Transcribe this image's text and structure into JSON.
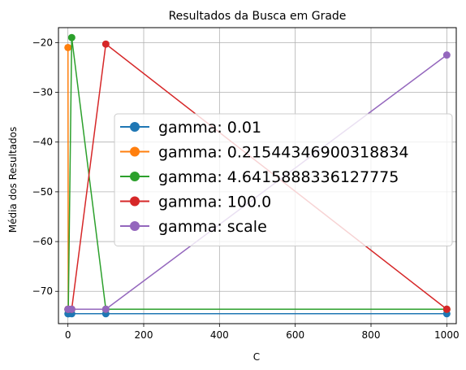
{
  "chart_data": {
    "type": "line",
    "title": "Resultados da Busca em Grade",
    "xlabel": "C",
    "ylabel": "Média dos Resultados",
    "xlim": [
      -25,
      1025
    ],
    "ylim": [
      -76.5,
      -17
    ],
    "xticks": [
      0,
      200,
      400,
      600,
      800,
      1000
    ],
    "xtick_labels": [
      "0",
      "200",
      "400",
      "600",
      "800",
      "1000"
    ],
    "yticks": [
      -70,
      -60,
      -50,
      -40,
      -30,
      -20
    ],
    "ytick_labels": [
      "−70",
      "−60",
      "−50",
      "−40",
      "−30",
      "−20"
    ],
    "grid": true,
    "legend_position": "center-right",
    "x": [
      0.1,
      1,
      10,
      100,
      1000
    ],
    "series": [
      {
        "name": "gamma: 0.01",
        "color": "#1f77b4",
        "values": [
          -74.5,
          -74.5,
          -74.5,
          -74.5,
          -74.5
        ]
      },
      {
        "name": "gamma: 0.21544346900318834",
        "color": "#ff7f0e",
        "values": [
          -21.0,
          -73.6,
          -73.6,
          -73.6,
          -73.6
        ]
      },
      {
        "name": "gamma: 4.6415888336127775",
        "color": "#2ca02c",
        "values": [
          -73.6,
          -73.6,
          -19.0,
          -73.6,
          -73.6
        ]
      },
      {
        "name": "gamma: 100.0",
        "color": "#d62728",
        "values": [
          -73.6,
          -73.6,
          -73.6,
          -20.3,
          -73.6
        ]
      },
      {
        "name": "gamma: scale",
        "color": "#9467bd",
        "values": [
          -73.6,
          -73.6,
          -73.6,
          -73.6,
          -22.5
        ]
      }
    ]
  }
}
